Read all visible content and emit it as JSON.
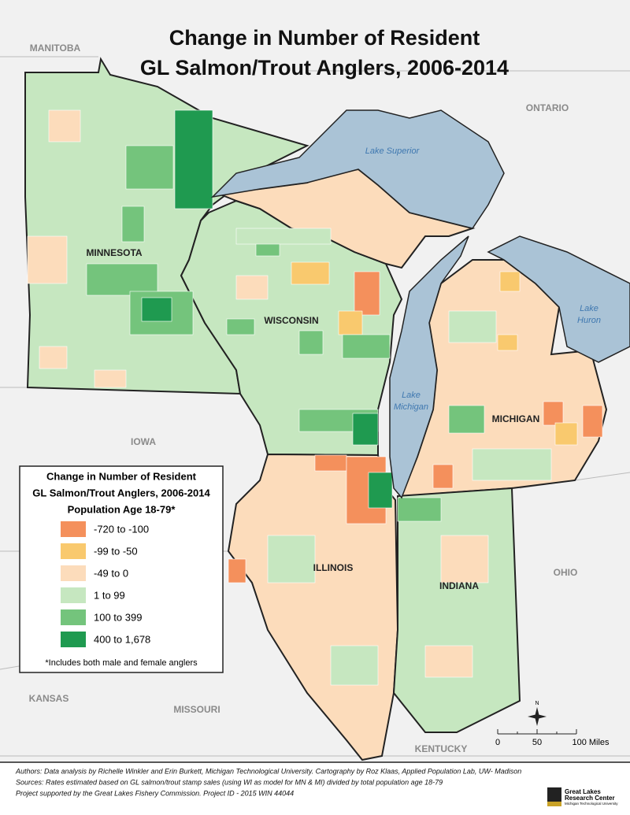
{
  "title": [
    "Change in Number of Resident",
    "GL Salmon/Trout Anglers, 2006-2014"
  ],
  "neighbors": [
    "MANITOBA",
    "ONTARIO",
    "IOWA",
    "KANSAS",
    "MISSOURI",
    "KENTUCKY",
    "OHIO"
  ],
  "states": [
    "MINNESOTA",
    "WISCONSIN",
    "MICHIGAN",
    "ILLINOIS",
    "INDIANA"
  ],
  "lakes": [
    [
      "Lake Superior"
    ],
    [
      "Lake",
      "Michigan"
    ],
    [
      "Lake",
      "Huron"
    ]
  ],
  "legend": {
    "title": [
      "Change in Number of Resident",
      "GL Salmon/Trout Anglers, 2006-2014",
      "Population Age 18-79*"
    ],
    "items": [
      {
        "label": "-720 to -100",
        "color": "#f4905c"
      },
      {
        "label": "-99 to -50",
        "color": "#f9c96e"
      },
      {
        "label": "-49 to 0",
        "color": "#fcdcbb"
      },
      {
        "label": "1 to 99",
        "color": "#c6e7c0"
      },
      {
        "label": "100 to 399",
        "color": "#74c47c"
      },
      {
        "label": "400 to 1,678",
        "color": "#1f9a50"
      }
    ],
    "note": "*Includes both male and female anglers"
  },
  "compass": "N",
  "scale": [
    "0",
    "50",
    "100 Miles"
  ],
  "footer": [
    "Authors: Data analysis by Richelle Winkler and Erin Burkett, Michigan Technological University. Cartography by Roz Klaas, Applied Population Lab, UW- Madison",
    "Sources: Rates estimated based on GL salmon/trout stamp sales (using WI as model for MN & MI) divided by total population age 18-79",
    "Project supported by the Great Lakes Fishery Commission. Project ID - 2015 WIN 44044"
  ],
  "logo": [
    "Great Lakes",
    "Research Center",
    "Michigan Technological University"
  ]
}
